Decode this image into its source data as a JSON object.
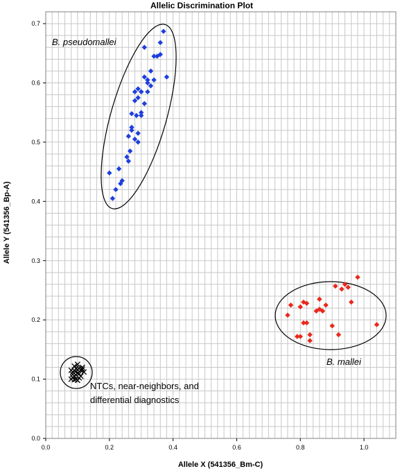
{
  "chart_data": {
    "type": "scatter",
    "title": "Allelic Discrimination Plot",
    "xlabel": "Allele X (541356_Bm-C)",
    "ylabel": "Allele Y (541356_Bp-A)",
    "xlim": [
      0.0,
      1.1
    ],
    "ylim": [
      0.0,
      0.72
    ],
    "x_ticks": [
      "0.0",
      "0.2",
      "0.4",
      "0.6",
      "0.8",
      "1.0"
    ],
    "y_ticks": [
      "0.0",
      "0.1",
      "0.2",
      "0.3",
      "0.4",
      "0.5",
      "0.6",
      "0.7"
    ],
    "grid": true,
    "colors": {
      "pseudomallei": "#1f3fdc",
      "mallei": "#e8291c",
      "ntc": "#000000",
      "grid": "#c8c8c8"
    },
    "series": [
      {
        "group": "pseudomallei",
        "marker": "diamond",
        "x": [
          0.2,
          0.22,
          0.23,
          0.21,
          0.24,
          0.235,
          0.26,
          0.265,
          0.255,
          0.27,
          0.28,
          0.29,
          0.285,
          0.27,
          0.3,
          0.31,
          0.29,
          0.3,
          0.32,
          0.33,
          0.31,
          0.29,
          0.3,
          0.32,
          0.34,
          0.33,
          0.35,
          0.36,
          0.37,
          0.34,
          0.36,
          0.38,
          0.31,
          0.28,
          0.26,
          0.27,
          0.29,
          0.3,
          0.32,
          0.28
        ],
        "y": [
          0.448,
          0.42,
          0.455,
          0.405,
          0.435,
          0.43,
          0.468,
          0.485,
          0.475,
          0.525,
          0.505,
          0.515,
          0.545,
          0.548,
          0.545,
          0.565,
          0.575,
          0.585,
          0.585,
          0.595,
          0.61,
          0.59,
          0.585,
          0.6,
          0.605,
          0.62,
          0.645,
          0.668,
          0.687,
          0.645,
          0.648,
          0.61,
          0.66,
          0.57,
          0.51,
          0.52,
          0.5,
          0.55,
          0.605,
          0.585
        ]
      },
      {
        "group": "mallei",
        "marker": "diamond",
        "x": [
          0.76,
          0.77,
          0.79,
          0.8,
          0.81,
          0.82,
          0.83,
          0.8,
          0.81,
          0.83,
          0.85,
          0.86,
          0.87,
          0.88,
          0.9,
          0.91,
          0.92,
          0.93,
          0.94,
          0.95,
          0.96,
          0.98,
          1.04,
          0.82,
          0.86
        ],
        "y": [
          0.208,
          0.225,
          0.172,
          0.172,
          0.195,
          0.228,
          0.165,
          0.222,
          0.23,
          0.175,
          0.215,
          0.235,
          0.215,
          0.225,
          0.19,
          0.257,
          0.175,
          0.252,
          0.26,
          0.255,
          0.23,
          0.272,
          0.192,
          0.195,
          0.218
        ]
      },
      {
        "group": "ntc",
        "marker": "x",
        "x": [
          0.08,
          0.085,
          0.09,
          0.095,
          0.1,
          0.105,
          0.11,
          0.115,
          0.09,
          0.1,
          0.085,
          0.095,
          0.105,
          0.11,
          0.08,
          0.1,
          0.09,
          0.12,
          0.095,
          0.1,
          0.105,
          0.085,
          0.115,
          0.09
        ],
        "y": [
          0.1,
          0.112,
          0.105,
          0.118,
          0.11,
          0.102,
          0.115,
          0.12,
          0.122,
          0.098,
          0.108,
          0.1,
          0.118,
          0.105,
          0.115,
          0.125,
          0.114,
          0.112,
          0.107,
          0.116,
          0.109,
          0.103,
          0.117,
          0.099
        ]
      }
    ],
    "annotations": [
      {
        "text": "B. pseudomallei",
        "style": "italic"
      },
      {
        "text": "B. mallei",
        "style": "italic"
      },
      {
        "text": "NTCs, near-neighbors, and",
        "style": "plain"
      },
      {
        "text": "differential diagnostics",
        "style": "plain"
      }
    ]
  }
}
